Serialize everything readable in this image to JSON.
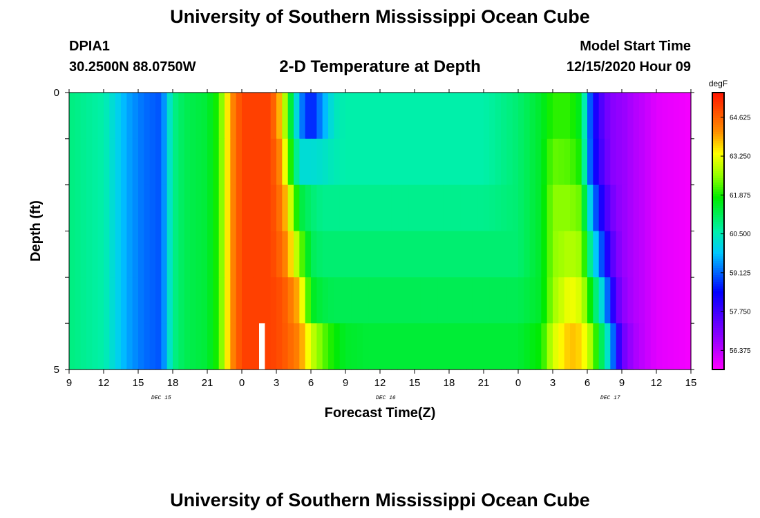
{
  "header": {
    "title": "University of Southern Mississippi Ocean Cube",
    "station": "DPIA1",
    "coordinates": "30.2500N 88.0750W",
    "plot_title": "2-D Temperature at Depth",
    "model_start_label": "Model Start Time",
    "model_start_value": "12/15/2020 Hour 09"
  },
  "footer": {
    "title": "University of Southern Mississippi Ocean Cube"
  },
  "chart_data": {
    "type": "heatmap",
    "title": "2-D Temperature at Depth",
    "xlabel": "Forecast Time(Z)",
    "ylabel": "Depth (ft)",
    "x_start_hour": 9,
    "x_end_hour": 63,
    "hours_per_column": 0.5,
    "xticks": [
      "9",
      "12",
      "15",
      "18",
      "21",
      "0",
      "3",
      "6",
      "9",
      "12",
      "15",
      "18",
      "21",
      "0",
      "3",
      "6",
      "9",
      "12",
      "15"
    ],
    "date_labels": [
      {
        "label": "DEC 15",
        "at_hour": 17
      },
      {
        "label": "DEC 16",
        "at_hour": 36.5
      },
      {
        "label": "DEC 17",
        "at_hour": 56
      }
    ],
    "yticks": [
      "0",
      "5"
    ],
    "ylim": [
      0,
      5
    ],
    "depth_levels_ft": [
      0,
      1,
      2,
      3,
      4,
      5
    ],
    "colorbar": {
      "unit": "degF",
      "min": 55.7,
      "max": 65.5,
      "tick_values": [
        56.375,
        57.75,
        59.125,
        60.5,
        61.875,
        63.25,
        64.625
      ],
      "tick_labels": [
        "56.375",
        "57.750",
        "59.125",
        "60.500",
        "61.875",
        "63.250",
        "64.625"
      ]
    },
    "temperature_profile_hours": [
      9,
      12,
      14,
      15.5,
      17,
      18,
      19,
      21,
      22,
      22.5,
      23,
      24,
      26.5,
      27.5,
      28,
      29,
      30,
      31,
      32,
      33,
      35,
      40,
      45,
      48,
      50,
      51,
      52.5,
      53.5,
      54,
      54.5,
      55,
      55.5,
      56,
      56.5,
      57,
      58,
      59,
      60,
      63
    ],
    "temperature_profile": [
      [
        60.9,
        60.6,
        59.6,
        59.2,
        59.0,
        60.8,
        61.2,
        61.4,
        62.0,
        63.0,
        64.0,
        65.0,
        65.0,
        63.5,
        62.0,
        59.5,
        58.5,
        59.5,
        60.4,
        60.6,
        60.6,
        60.6,
        60.6,
        61.0,
        61.5,
        62.0,
        62.0,
        61.5,
        59.6,
        58.5,
        57.8,
        57.3,
        57.0,
        56.8,
        56.8,
        56.5,
        56.3,
        56.0,
        55.8
      ],
      [
        60.9,
        60.6,
        59.6,
        59.2,
        59.0,
        60.8,
        61.2,
        61.4,
        62.0,
        63.0,
        64.0,
        65.0,
        65.0,
        64.0,
        62.5,
        60.2,
        60.2,
        60.3,
        60.5,
        60.6,
        60.6,
        60.6,
        60.6,
        61.0,
        61.5,
        62.3,
        62.2,
        61.8,
        59.6,
        58.6,
        57.9,
        57.4,
        57.0,
        56.8,
        56.8,
        56.5,
        56.3,
        56.0,
        55.8
      ],
      [
        60.9,
        60.6,
        59.6,
        59.2,
        59.0,
        60.8,
        61.2,
        61.4,
        62.0,
        63.0,
        64.0,
        65.0,
        65.0,
        64.3,
        63.5,
        61.4,
        61.0,
        60.8,
        60.8,
        60.8,
        60.8,
        60.8,
        60.8,
        61.0,
        61.5,
        62.5,
        62.5,
        62.3,
        60.5,
        59.5,
        58.5,
        57.8,
        57.3,
        56.9,
        56.8,
        56.5,
        56.3,
        56.0,
        55.8
      ],
      [
        60.9,
        60.6,
        59.6,
        59.2,
        59.0,
        60.8,
        61.2,
        61.4,
        62.0,
        63.0,
        64.0,
        65.0,
        65.0,
        64.5,
        64.0,
        62.5,
        61.2,
        61.0,
        61.0,
        61.0,
        61.0,
        61.0,
        61.0,
        61.0,
        61.5,
        62.5,
        62.8,
        62.6,
        61.4,
        60.2,
        59.5,
        58.5,
        57.7,
        57.1,
        56.8,
        56.5,
        56.3,
        56.0,
        55.8
      ],
      [
        60.9,
        60.6,
        59.6,
        59.2,
        59.0,
        60.8,
        61.2,
        61.4,
        62.0,
        63.0,
        64.0,
        65.0,
        65.0,
        64.8,
        64.5,
        63.8,
        61.6,
        61.3,
        61.2,
        61.2,
        61.2,
        61.2,
        61.2,
        61.2,
        61.5,
        62.6,
        63.3,
        63.0,
        62.2,
        61.4,
        60.5,
        59.8,
        58.5,
        57.5,
        56.9,
        56.5,
        56.3,
        56.0,
        55.8
      ],
      [
        60.9,
        60.6,
        59.6,
        59.2,
        59.0,
        60.8,
        61.2,
        61.4,
        62.0,
        63.0,
        64.0,
        65.0,
        65.0,
        64.8,
        64.6,
        64.2,
        63.0,
        62.3,
        61.8,
        61.5,
        61.4,
        61.4,
        61.4,
        61.4,
        61.8,
        63.0,
        63.8,
        63.6,
        63.0,
        62.5,
        61.5,
        60.8,
        59.8,
        58.5,
        57.3,
        56.6,
        56.3,
        56.0,
        55.8
      ]
    ],
    "missing_data_cells": [
      {
        "hour": 25.5,
        "depth_level": 5
      }
    ]
  }
}
